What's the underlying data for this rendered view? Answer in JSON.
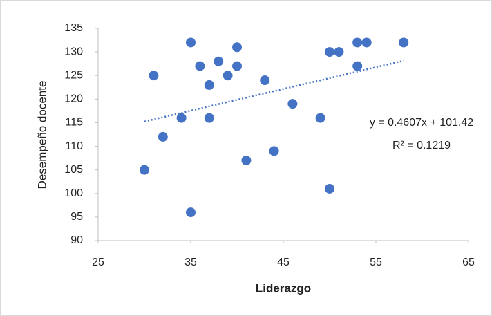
{
  "chart_data": {
    "type": "scatter",
    "x_label": "Liderazgo",
    "y_label": "Desempeño docente",
    "x": [
      30,
      31,
      32,
      34,
      35,
      35,
      36,
      37,
      37,
      38,
      39,
      40,
      40,
      41,
      43,
      44,
      46,
      49,
      50,
      50,
      51,
      53,
      53,
      54,
      58
    ],
    "values": [
      105,
      125,
      112,
      116,
      132,
      96,
      127,
      123,
      116,
      128,
      125,
      131,
      127,
      107,
      124,
      109,
      119,
      116,
      130,
      101,
      130,
      132,
      127,
      132,
      132
    ],
    "color": "#4472c4",
    "xlim": [
      25,
      65
    ],
    "xticks": [
      25,
      35,
      45,
      55,
      65
    ],
    "ylim": [
      90,
      135
    ],
    "yticks": [
      90,
      95,
      100,
      105,
      110,
      115,
      120,
      125,
      130,
      135
    ],
    "grid": false,
    "trendline": {
      "slope": 0.4607,
      "intercept": 101.42,
      "equation": "y = 0.4607x + 101.42",
      "r_squared_label": "R² = 0.1219"
    }
  }
}
